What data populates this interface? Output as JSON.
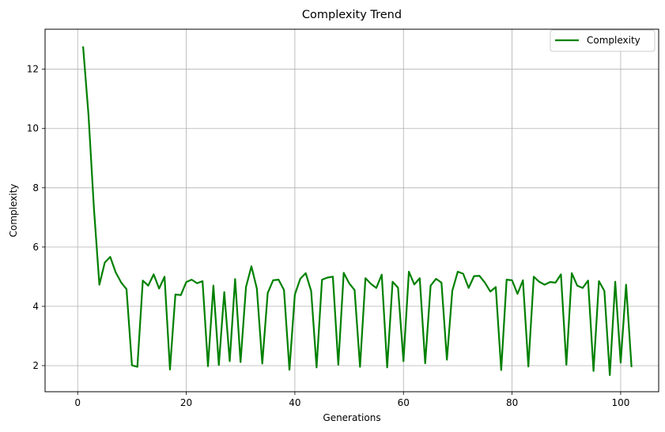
{
  "chart_data": {
    "type": "line",
    "title": "Complexity Trend",
    "xlabel": "Generations",
    "ylabel": "Complexity",
    "xlim": [
      -6,
      107
    ],
    "ylim": [
      1.12,
      13.35
    ],
    "xticks": [
      0,
      20,
      40,
      60,
      80,
      100
    ],
    "yticks": [
      2,
      4,
      6,
      8,
      10,
      12
    ],
    "grid": true,
    "legend": "top-right",
    "series": [
      {
        "name": "Complexity",
        "color": "#008000",
        "x": [
          1,
          2,
          3,
          4,
          5,
          6,
          7,
          8,
          9,
          10,
          11,
          12,
          13,
          14,
          15,
          16,
          17,
          18,
          19,
          20,
          21,
          22,
          23,
          24,
          25,
          26,
          27,
          28,
          29,
          30,
          31,
          32,
          33,
          34,
          35,
          36,
          37,
          38,
          39,
          40,
          41,
          42,
          43,
          44,
          45,
          46,
          47,
          48,
          49,
          50,
          51,
          52,
          53,
          54,
          55,
          56,
          57,
          58,
          59,
          60,
          61,
          62,
          63,
          64,
          65,
          66,
          67,
          68,
          69,
          70,
          71,
          72,
          73,
          74,
          75,
          76,
          77,
          78,
          79,
          80,
          81,
          82,
          83,
          84,
          85,
          86,
          87,
          88,
          89,
          90,
          91,
          92,
          93,
          94,
          95,
          96,
          97,
          98,
          99,
          100,
          101,
          102
        ],
        "y": [
          12.77,
          10.45,
          7.3,
          4.73,
          5.48,
          5.67,
          5.15,
          4.81,
          4.58,
          2.01,
          1.96,
          4.87,
          4.7,
          5.08,
          4.6,
          5.0,
          1.87,
          4.4,
          4.38,
          4.82,
          4.9,
          4.78,
          4.85,
          1.98,
          4.7,
          2.02,
          4.48,
          2.15,
          4.92,
          2.12,
          4.65,
          5.35,
          4.6,
          2.07,
          4.45,
          4.88,
          4.9,
          4.55,
          1.86,
          4.4,
          4.93,
          5.12,
          4.52,
          1.94,
          4.9,
          4.97,
          5.0,
          2.03,
          5.13,
          4.78,
          4.55,
          1.96,
          4.95,
          4.76,
          4.62,
          5.07,
          1.94,
          4.83,
          4.63,
          2.15,
          5.17,
          4.74,
          4.95,
          2.08,
          4.7,
          4.93,
          4.8,
          2.2,
          4.53,
          5.17,
          5.1,
          4.62,
          5.02,
          5.03,
          4.8,
          4.5,
          4.65,
          1.85,
          4.9,
          4.88,
          4.42,
          4.88,
          1.97,
          5.0,
          4.83,
          4.73,
          4.82,
          4.8,
          5.08,
          2.03,
          5.12,
          4.7,
          4.62,
          4.87,
          1.82,
          4.85,
          4.52,
          1.68,
          4.83,
          2.1,
          4.73,
          1.95
        ]
      }
    ]
  }
}
